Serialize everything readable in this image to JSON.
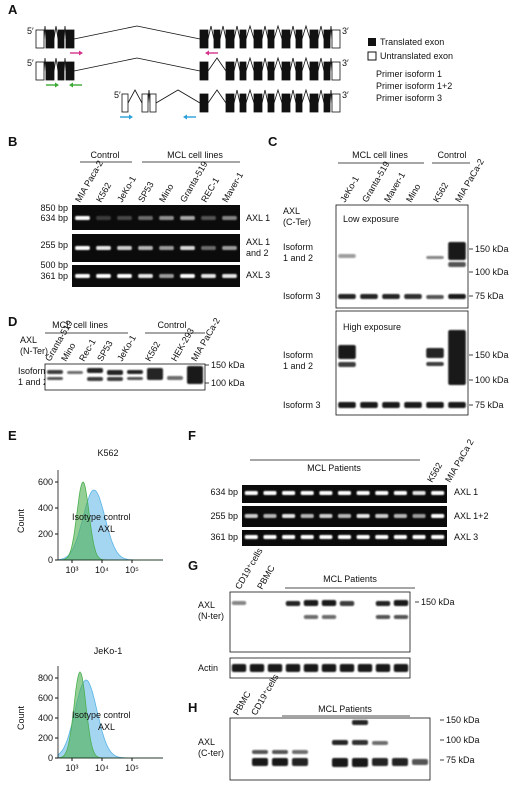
{
  "A": {
    "label": "A",
    "ends": [
      [
        "5′",
        "3′"
      ],
      [
        "5′",
        "3′"
      ],
      [
        "5′",
        "3′"
      ]
    ],
    "legend": [
      "Translated exon",
      "Untranslated exon"
    ],
    "primers": [
      "Primer isoform 1",
      "Primer isoform 1+2",
      "Primer isoform 3"
    ]
  },
  "B": {
    "label": "B",
    "groups": [
      "Control",
      "MCL cell lines"
    ],
    "lanes": [
      "MIA Paca-2",
      "K562",
      "JeKo-1",
      "SP53",
      "Mino",
      "Granta-519",
      "REC-1",
      "Maver-1"
    ],
    "markers": [
      "850 bp",
      "634 bp",
      "255 bp",
      "500 bp",
      "361 bp"
    ],
    "products": [
      [
        "AXL 1"
      ],
      [
        "AXL 1",
        "and 2"
      ],
      [
        "AXL 3"
      ]
    ]
  },
  "C": {
    "label": "C",
    "groups": [
      "MCL cell lines",
      "Control"
    ],
    "lanes": [
      "JeKo-1",
      "Granta-519",
      "Maver-1",
      "Mino",
      "K562",
      "MIA PaCa-2"
    ],
    "antibody": [
      "AXL",
      "(C-Ter)"
    ],
    "exposures": [
      {
        "title": "Low exposure",
        "isoforms": [
          [
            "Isoform",
            "1 and 2"
          ],
          [
            "Isoform 3"
          ]
        ],
        "markers": [
          "150 kDa",
          "100 kDa",
          "75 kDa"
        ]
      },
      {
        "title": "High exposure",
        "isoforms": [
          [
            "Isoform",
            "1 and 2"
          ],
          [
            "Isoform 3"
          ]
        ],
        "markers": [
          "150 kDa",
          "100 kDa",
          "75 kDa"
        ]
      }
    ]
  },
  "D": {
    "label": "D",
    "groups": [
      "MCL cell lines",
      "Control"
    ],
    "lanes": [
      "Granta-519",
      "Mino",
      "Rec-1",
      "SP53",
      "JeKo-1",
      "K562",
      "HEK-293",
      "MIA PaCa-2"
    ],
    "antibody": [
      "AXL",
      "(N-Ter)"
    ],
    "isoform": [
      "Isoform",
      "1 and 2"
    ],
    "markers": [
      "150 kDa",
      "100 kDa"
    ]
  },
  "E": {
    "label": "E",
    "plots": [
      {
        "title": "K562",
        "ylabel": "Count",
        "yticks": [
          0,
          200,
          400,
          600
        ],
        "xticks": [
          "10³",
          "10⁴",
          "10⁵"
        ],
        "legend": [
          "Isotype control",
          "AXL"
        ]
      },
      {
        "title": "JeKo-1",
        "ylabel": "Count",
        "yticks": [
          0,
          200,
          400,
          600,
          800
        ],
        "xticks": [
          "10³",
          "10⁴",
          "10⁵"
        ],
        "legend": [
          "Isotype control",
          "AXL"
        ]
      }
    ]
  },
  "F": {
    "label": "F",
    "group": "MCL Patients",
    "lanes": [
      "K562",
      "MIA PaCa 2"
    ],
    "markers": [
      "634 bp",
      "255 bp",
      "361 bp"
    ],
    "products": [
      "AXL 1",
      "AXL 1+2",
      "AXL 3"
    ]
  },
  "G": {
    "label": "G",
    "lanes": [
      "CD19⁺cells",
      "PBMC"
    ],
    "group": "MCL Patients",
    "antibody": [
      "AXL",
      "(N-ter)"
    ],
    "marker": "150 kDa",
    "control": "Actin"
  },
  "H": {
    "label": "H",
    "lanes": [
      "PBMC",
      "CD19⁺cells"
    ],
    "group": "MCL Patients",
    "antibody": [
      "AXL",
      "(C-ter)"
    ],
    "markers": [
      "150 kDa",
      "100 kDa",
      "75 kDa"
    ]
  }
}
